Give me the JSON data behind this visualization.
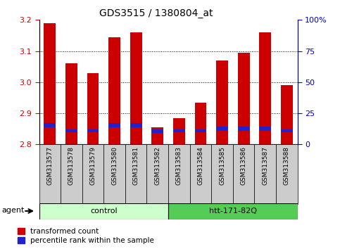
{
  "title": "GDS3515 / 1380804_at",
  "samples": [
    "GSM313577",
    "GSM313578",
    "GSM313579",
    "GSM313580",
    "GSM313581",
    "GSM313582",
    "GSM313583",
    "GSM313584",
    "GSM313585",
    "GSM313586",
    "GSM313587",
    "GSM313588"
  ],
  "red_values": [
    3.19,
    3.06,
    3.03,
    3.145,
    3.16,
    2.855,
    2.885,
    2.935,
    3.07,
    3.095,
    3.16,
    2.99
  ],
  "blue_tops": [
    2.868,
    2.848,
    2.848,
    2.868,
    2.868,
    2.848,
    2.848,
    2.848,
    2.858,
    2.858,
    2.858,
    2.848
  ],
  "blue_bottoms": [
    2.855,
    2.84,
    2.84,
    2.855,
    2.855,
    2.836,
    2.84,
    2.84,
    2.843,
    2.843,
    2.843,
    2.84
  ],
  "ymin": 2.8,
  "ymax": 3.2,
  "right_yticks": [
    0,
    25,
    50,
    75,
    100
  ],
  "right_ylabels": [
    "0",
    "25",
    "50",
    "75",
    "100%"
  ],
  "groups": [
    {
      "label": "control",
      "start": 0,
      "end": 5,
      "color": "#ccffcc"
    },
    {
      "label": "htt-171-82Q",
      "start": 6,
      "end": 11,
      "color": "#55cc55"
    }
  ],
  "bar_color_red": "#cc0000",
  "bar_color_blue": "#2222cc",
  "bar_width": 0.55,
  "left_axis_color": "#cc0000",
  "right_axis_color": "#0000cc",
  "legend_red": "transformed count",
  "legend_blue": "percentile rank within the sample",
  "tick_bg_color": "#cccccc"
}
